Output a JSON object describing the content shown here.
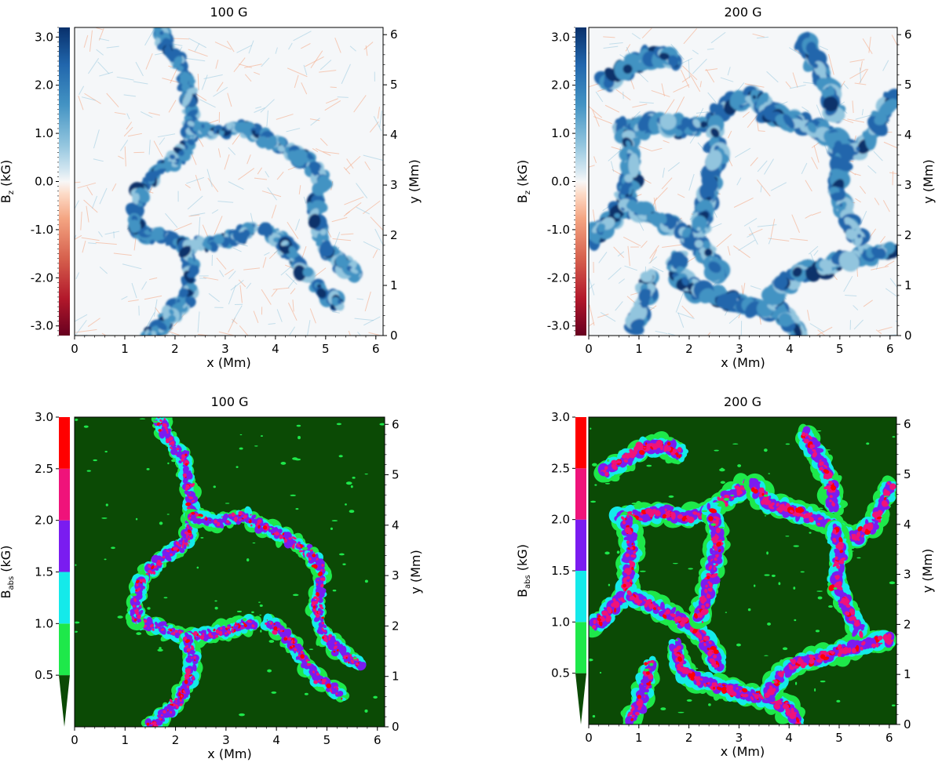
{
  "chart_data": [
    {
      "type": "heatmap",
      "title": "100 G",
      "xlabel": "x (Mm)",
      "ylabel_right": "y (Mm)",
      "cbar_label": "B",
      "cbar_label_sub": "z",
      "cbar_label_unit": " (kG)",
      "xlim": [
        0,
        6.144
      ],
      "ylim": [
        0,
        6.144
      ],
      "x_ticks": [
        "0",
        "1",
        "2",
        "3",
        "4",
        "5",
        "6"
      ],
      "y_ticks": [
        "0",
        "1",
        "2",
        "3",
        "4",
        "5",
        "6"
      ],
      "cbar_range": [
        -3.2,
        3.2
      ],
      "cbar_ticks": [
        "-3.0",
        "-2.0",
        "-1.0",
        "0.0",
        "1.0",
        "2.0",
        "3.0"
      ],
      "cbar_tick_values": [
        -3,
        -2,
        -1,
        0,
        1,
        2,
        3
      ],
      "colormap": "diverging red-white-blue",
      "colors": {
        "negative": "#67001f",
        "zero": "#f7f7f7",
        "positive": "#08306b"
      },
      "field_description_note": "",
      "field": {
        "network_strength": 0.55,
        "background": "#f5f7f9"
      }
    },
    {
      "type": "heatmap",
      "title": "200 G",
      "xlabel": "x (Mm)",
      "ylabel_right": "y (Mm)",
      "cbar_label": "B",
      "cbar_label_sub": "z",
      "cbar_label_unit": " (kG)",
      "xlim": [
        0,
        6.144
      ],
      "ylim": [
        0,
        6.144
      ],
      "x_ticks": [
        "0",
        "1",
        "2",
        "3",
        "4",
        "5",
        "6"
      ],
      "y_ticks": [
        "0",
        "1",
        "2",
        "3",
        "4",
        "5",
        "6"
      ],
      "cbar_range": [
        -3.2,
        3.2
      ],
      "cbar_ticks": [
        "-3.0",
        "-2.0",
        "-1.0",
        "0.0",
        "1.0",
        "2.0",
        "3.0"
      ],
      "cbar_tick_values": [
        -3,
        -2,
        -1,
        0,
        1,
        2,
        3
      ],
      "colormap": "diverging red-white-blue",
      "colors": {
        "negative": "#67001f",
        "zero": "#f7f7f7",
        "positive": "#08306b"
      },
      "field": {
        "network_strength": 1.0,
        "background": "#f5f7f9"
      }
    },
    {
      "type": "heatmap",
      "title": "100 G",
      "xlabel": "x (Mm)",
      "ylabel_right": "y (Mm)",
      "cbar_label": "B",
      "cbar_label_sub": "abs",
      "cbar_label_unit": " (kG)",
      "xlim": [
        0,
        6.144
      ],
      "ylim": [
        0,
        6.144
      ],
      "x_ticks": [
        "0",
        "1",
        "2",
        "3",
        "4",
        "5",
        "6"
      ],
      "y_ticks": [
        "0",
        "1",
        "2",
        "3",
        "4",
        "5",
        "6"
      ],
      "cbar_range": [
        0,
        3.0
      ],
      "cbar_ticks": [
        "0.5",
        "1.0",
        "1.5",
        "2.0",
        "2.5",
        "3.0"
      ],
      "cbar_tick_values": [
        0.5,
        1.0,
        1.5,
        2.0,
        2.5,
        3.0
      ],
      "colormap": "discrete",
      "levels": [
        {
          "from": 0.0,
          "to": 0.5,
          "color": "#0b4a05"
        },
        {
          "from": 0.5,
          "to": 1.0,
          "color": "#1ee84a"
        },
        {
          "from": 1.0,
          "to": 1.5,
          "color": "#14eaea"
        },
        {
          "from": 1.5,
          "to": 2.0,
          "color": "#7a1cf0"
        },
        {
          "from": 2.0,
          "to": 2.5,
          "color": "#ef137a"
        },
        {
          "from": 2.5,
          "to": 3.0,
          "color": "#ff0000"
        }
      ],
      "field": {
        "network_strength": 0.55
      }
    },
    {
      "type": "heatmap",
      "title": "200 G",
      "xlabel": "x (Mm)",
      "ylabel_right": "y (Mm)",
      "cbar_label": "B",
      "cbar_label_sub": "abs",
      "cbar_label_unit": " (kG)",
      "xlim": [
        0,
        6.144
      ],
      "ylim": [
        0,
        6.144
      ],
      "x_ticks": [
        "0",
        "1",
        "2",
        "3",
        "4",
        "5",
        "6"
      ],
      "y_ticks": [
        "0",
        "1",
        "2",
        "3",
        "4",
        "5",
        "6"
      ],
      "cbar_range": [
        0,
        3.0
      ],
      "cbar_ticks": [
        "0.5",
        "1.0",
        "1.5",
        "2.0",
        "2.5",
        "3.0"
      ],
      "cbar_tick_values": [
        0.5,
        1.0,
        1.5,
        2.0,
        2.5,
        3.0
      ],
      "colormap": "discrete",
      "levels": [
        {
          "from": 0.0,
          "to": 0.5,
          "color": "#0b4a05"
        },
        {
          "from": 0.5,
          "to": 1.0,
          "color": "#1ee84a"
        },
        {
          "from": 1.0,
          "to": 1.5,
          "color": "#14eaea"
        },
        {
          "from": 1.5,
          "to": 2.0,
          "color": "#7a1cf0"
        },
        {
          "from": 2.0,
          "to": 2.5,
          "color": "#ef137a"
        },
        {
          "from": 2.5,
          "to": 3.0,
          "color": "#ff0000"
        }
      ],
      "field": {
        "network_strength": 1.0
      }
    }
  ]
}
